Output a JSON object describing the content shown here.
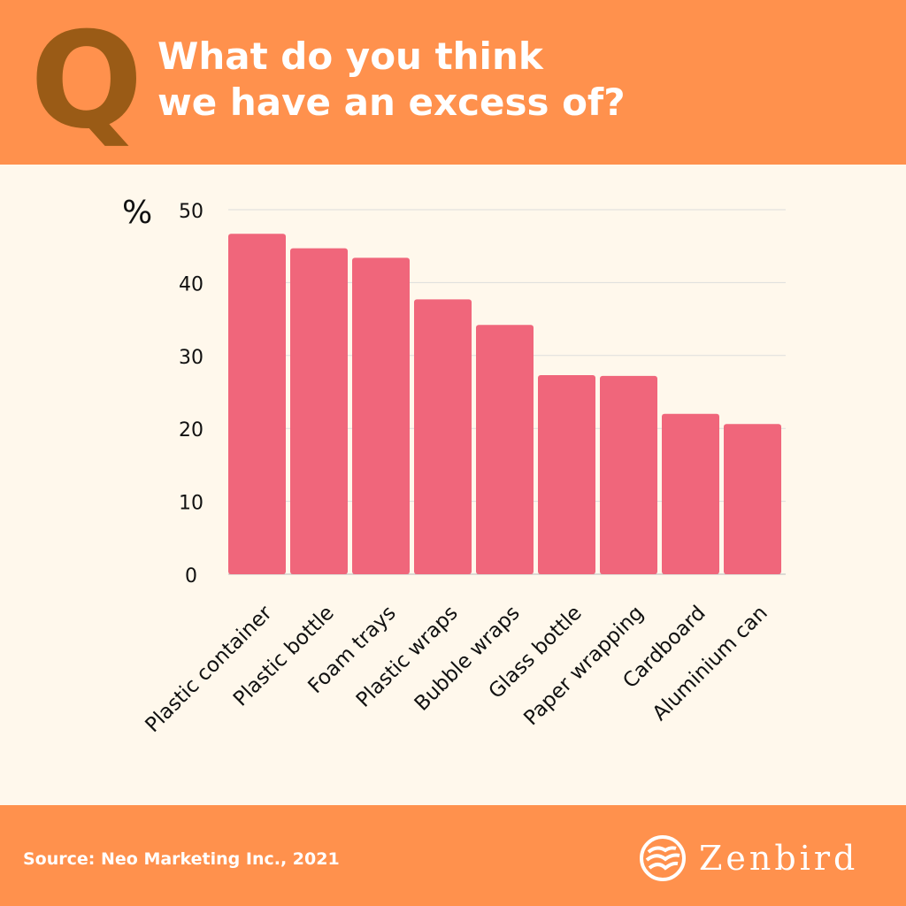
{
  "header": {
    "q_letter": "Q",
    "title_line1": "What do you think",
    "title_line2": "we have an excess of?"
  },
  "footer": {
    "source": "Source: Neo Marketing Inc., 2021",
    "brand": "Zenbird"
  },
  "colors": {
    "orange": "#FF914D",
    "background": "#FFF8EC",
    "bar": "#F0667B",
    "q": "#9A5B16"
  },
  "chart_data": {
    "type": "bar",
    "title": "What do you think we have an excess of?",
    "ylabel": "%",
    "xlabel": "",
    "ylim": [
      0,
      50
    ],
    "yticks": [
      0,
      10,
      20,
      30,
      40,
      50
    ],
    "grid": true,
    "categories": [
      "Plastic container",
      "Plastic bottle",
      "Foam trays",
      "Plastic wraps",
      "Bubble wraps",
      "Glass bottle",
      "Paper wrapping",
      "Cardboard",
      "Aluminium can"
    ],
    "values": [
      46.7,
      44.7,
      43.4,
      37.7,
      34.2,
      27.3,
      27.2,
      22.0,
      20.6
    ]
  }
}
